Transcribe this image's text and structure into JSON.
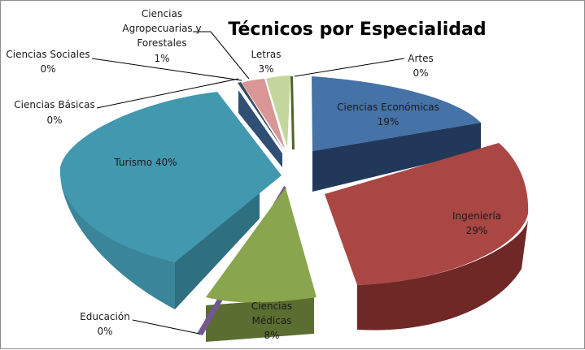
{
  "chart_data": {
    "type": "pie",
    "title": "Técnicos por Especialidad",
    "slices": [
      {
        "name": "Ciencias Económicas",
        "value": 19,
        "label": "19%",
        "color": "#4572a7"
      },
      {
        "name": "Ingeniería",
        "value": 29,
        "label": "29%",
        "color": "#aa4643"
      },
      {
        "name": "Ciencias Médicas",
        "value": 8,
        "label": "8%",
        "color": "#89a54e"
      },
      {
        "name": "Educación",
        "value": 0,
        "label": "0%",
        "color": "#71588f"
      },
      {
        "name": "Turismo",
        "value": 40,
        "label": "40%",
        "color": "#4198af"
      },
      {
        "name": "Ciencias Básicas",
        "value": 0,
        "label": "0%",
        "color": "#2f4f74"
      },
      {
        "name": "Ciencias Sociales",
        "value": 0,
        "label": "0%",
        "color": "#3b4a63"
      },
      {
        "name": "Ciencias Agropecuarias y Forestales",
        "value": 1,
        "label": "1%",
        "color": "#d99694"
      },
      {
        "name": "Letras",
        "value": 3,
        "label": "3%",
        "color": "#c3d69b"
      },
      {
        "name": "Artes",
        "value": 0,
        "label": "0%",
        "color": "#4f6228"
      }
    ],
    "style": "3d-exploded-pie"
  }
}
